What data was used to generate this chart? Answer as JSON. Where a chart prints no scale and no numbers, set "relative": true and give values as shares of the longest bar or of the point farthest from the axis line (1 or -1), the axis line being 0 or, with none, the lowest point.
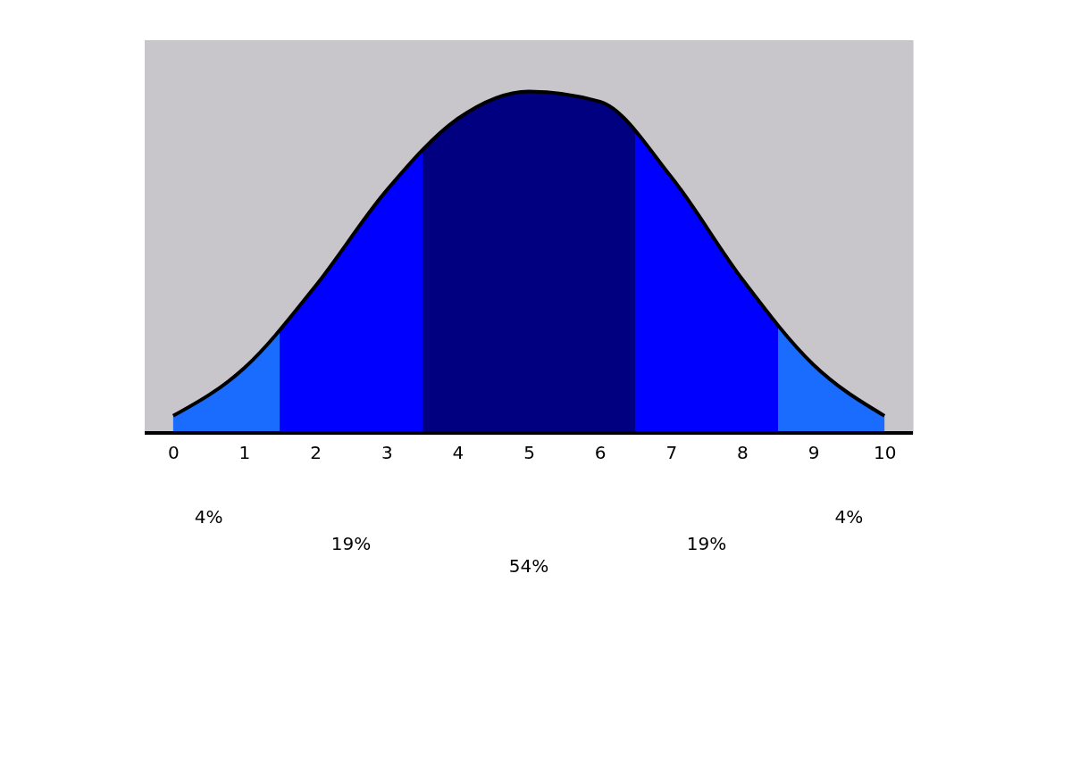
{
  "chart_data": {
    "type": "area",
    "categories": [
      "0",
      "1",
      "2",
      "3",
      "4",
      "5",
      "6",
      "7",
      "8",
      "9",
      "10"
    ],
    "values": [
      0.05,
      0.19,
      0.43,
      0.71,
      0.92,
      1.0,
      0.97,
      0.75,
      0.45,
      0.2,
      0.05
    ],
    "colors": [
      "#1a6cff",
      "#1a6cff",
      "#0000ff",
      "#0000ff",
      "#000080",
      "#000080",
      "#000080",
      "#0000ff",
      "#0000ff",
      "#1a6cff",
      "#1a6cff"
    ],
    "annotations": [
      "4%",
      "19%",
      "54%",
      "19%",
      "4%"
    ],
    "relative": true
  }
}
